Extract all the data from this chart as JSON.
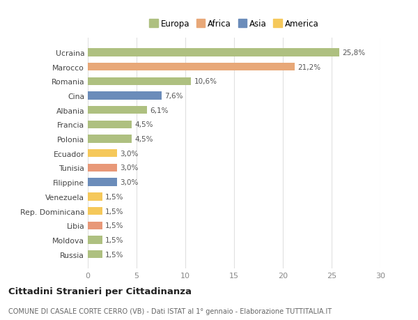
{
  "countries": [
    "Russia",
    "Moldova",
    "Libia",
    "Rep. Dominicana",
    "Venezuela",
    "Filippine",
    "Tunisia",
    "Ecuador",
    "Polonia",
    "Francia",
    "Albania",
    "Cina",
    "Romania",
    "Marocco",
    "Ucraina"
  ],
  "values": [
    1.5,
    1.5,
    1.5,
    1.5,
    1.5,
    3.0,
    3.0,
    3.0,
    4.5,
    4.5,
    6.1,
    7.6,
    10.6,
    21.2,
    25.8
  ],
  "labels": [
    "1,5%",
    "1,5%",
    "1,5%",
    "1,5%",
    "1,5%",
    "3,0%",
    "3,0%",
    "3,0%",
    "4,5%",
    "4,5%",
    "6,1%",
    "7,6%",
    "10,6%",
    "21,2%",
    "25,8%"
  ],
  "colors": [
    "#aec080",
    "#aec080",
    "#e89878",
    "#f5c85a",
    "#f5c85a",
    "#6b8cba",
    "#e89878",
    "#f5c85a",
    "#aec080",
    "#aec080",
    "#aec080",
    "#6b8cba",
    "#aec080",
    "#e8a878",
    "#aec080"
  ],
  "legend": [
    {
      "label": "Europa",
      "color": "#aec080"
    },
    {
      "label": "Africa",
      "color": "#e8a878"
    },
    {
      "label": "Asia",
      "color": "#6b8cba"
    },
    {
      "label": "America",
      "color": "#f5c85a"
    }
  ],
  "xlim": [
    0,
    30
  ],
  "xticks": [
    0,
    5,
    10,
    15,
    20,
    25,
    30
  ],
  "title": "Cittadini Stranieri per Cittadinanza",
  "subtitle": "COMUNE DI CASALE CORTE CERRO (VB) - Dati ISTAT al 1° gennaio - Elaborazione TUTTITALIA.IT",
  "bg_color": "#ffffff",
  "plot_bg": "#ffffff",
  "grid_color": "#e0e0e0",
  "label_color": "#555555",
  "tick_color": "#888888"
}
